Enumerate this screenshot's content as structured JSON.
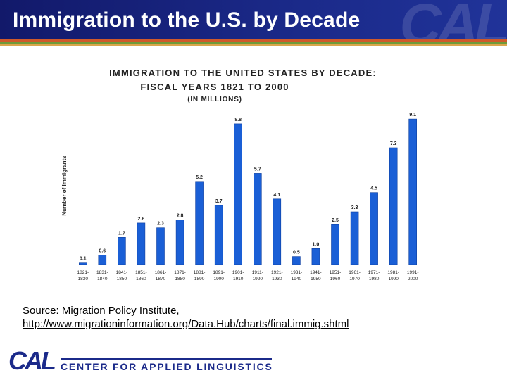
{
  "header": {
    "title": "Immigration to the U.S. by Decade",
    "watermark": "CAL"
  },
  "colors": {
    "header_bg": "#1b2a8a",
    "bar_fill": "#1a5fd6",
    "bar_stroke": "#0f3f9e",
    "title_text": "#222222"
  },
  "chart_data": {
    "type": "bar",
    "title": "IMMIGRATION TO THE UNITED STATES BY DECADE:",
    "subtitle": "FISCAL YEARS 1821 TO 2000",
    "units_note": "(IN MILLIONS)",
    "ylabel": "Number of Immigrants",
    "xlabel": "",
    "categories": [
      [
        "1821-",
        "1830"
      ],
      [
        "1831-",
        "1840"
      ],
      [
        "1841-",
        "1850"
      ],
      [
        "1851-",
        "1860"
      ],
      [
        "1861-",
        "1870"
      ],
      [
        "1871-",
        "1880"
      ],
      [
        "1881-",
        "1890"
      ],
      [
        "1891-",
        "1900"
      ],
      [
        "1901-",
        "1910"
      ],
      [
        "1911-",
        "1920"
      ],
      [
        "1921-",
        "1930"
      ],
      [
        "1931-",
        "1940"
      ],
      [
        "1941-",
        "1950"
      ],
      [
        "1951-",
        "1960"
      ],
      [
        "1961-",
        "1970"
      ],
      [
        "1971-",
        "1980"
      ],
      [
        "1981-",
        "1990"
      ],
      [
        "1991-",
        "2000"
      ]
    ],
    "values": [
      0.1,
      0.6,
      1.7,
      2.6,
      2.3,
      2.8,
      5.2,
      3.7,
      8.8,
      5.7,
      4.1,
      0.5,
      1.0,
      2.5,
      3.3,
      4.5,
      7.3,
      9.1
    ],
    "value_labels": [
      "0.1",
      "0.6",
      "1.7",
      "2.6",
      "2.3",
      "2.8",
      "5.2",
      "3.7",
      "8.8",
      "5.7",
      "4.1",
      "0.5",
      "1.0",
      "2.5",
      "3.3",
      "4.5",
      "7.3",
      "9.1"
    ],
    "ylim": [
      0,
      9.5
    ],
    "grid": false,
    "legend": "none"
  },
  "source": {
    "label": "Source: Migration Policy Institute,",
    "url": "http://www.migrationinformation.org/Data.Hub/charts/final.immig.shtml"
  },
  "footer": {
    "logo_text": "CAL",
    "org_name": "CENTER FOR APPLIED LINGUISTICS"
  }
}
